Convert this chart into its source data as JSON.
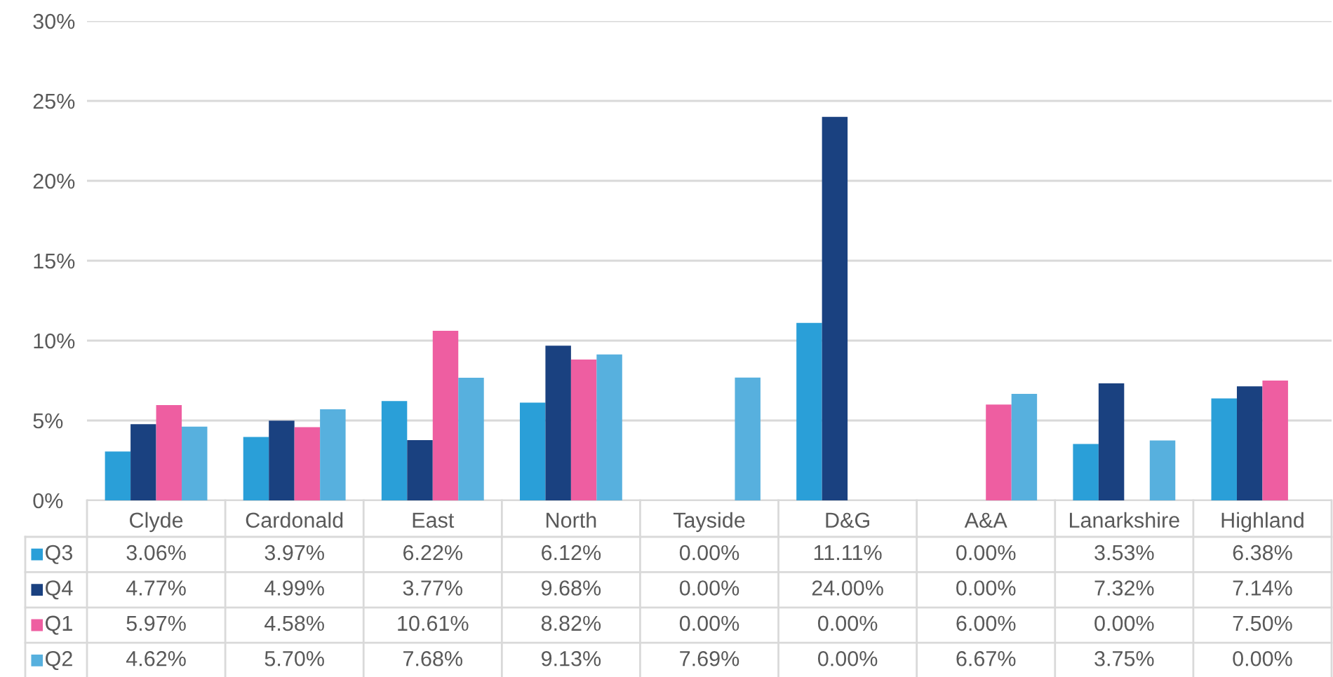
{
  "chart_data": {
    "type": "bar",
    "categories": [
      "Clyde",
      "Cardonald",
      "East",
      "North",
      "Tayside",
      "D&G",
      "A&A",
      "Lanarkshire",
      "Highland"
    ],
    "series": [
      {
        "name": "Q3",
        "color": "#2a9fd8",
        "values": [
          3.06,
          3.97,
          6.22,
          6.12,
          0.0,
          11.11,
          0.0,
          3.53,
          6.38
        ],
        "value_labels": [
          "3.06%",
          "3.97%",
          "6.22%",
          "6.12%",
          "0.00%",
          "11.11%",
          "0.00%",
          "3.53%",
          "6.38%"
        ]
      },
      {
        "name": "Q4",
        "color": "#1a4180",
        "values": [
          4.77,
          4.99,
          3.77,
          9.68,
          0.0,
          24.0,
          0.0,
          7.32,
          7.14
        ],
        "value_labels": [
          "4.77%",
          "4.99%",
          "3.77%",
          "9.68%",
          "0.00%",
          "24.00%",
          "0.00%",
          "7.32%",
          "7.14%"
        ]
      },
      {
        "name": "Q1",
        "color": "#ee5ea1",
        "values": [
          5.97,
          4.58,
          10.61,
          8.82,
          0.0,
          0.0,
          6.0,
          0.0,
          7.5
        ],
        "value_labels": [
          "5.97%",
          "4.58%",
          "10.61%",
          "8.82%",
          "0.00%",
          "0.00%",
          "6.00%",
          "0.00%",
          "7.50%"
        ]
      },
      {
        "name": "Q2",
        "color": "#57b0de",
        "values": [
          4.62,
          5.7,
          7.68,
          9.13,
          7.69,
          0.0,
          6.67,
          3.75,
          0.0
        ],
        "value_labels": [
          "4.62%",
          "5.70%",
          "7.68%",
          "9.13%",
          "7.69%",
          "0.00%",
          "6.67%",
          "3.75%",
          "0.00%"
        ]
      }
    ],
    "ylim": [
      0,
      30
    ],
    "yticks": [
      {
        "value": 0,
        "label": "0%"
      },
      {
        "value": 5,
        "label": "5%"
      },
      {
        "value": 10,
        "label": "10%"
      },
      {
        "value": 15,
        "label": "15%"
      },
      {
        "value": 20,
        "label": "20%"
      },
      {
        "value": 25,
        "label": "25%"
      },
      {
        "value": 30,
        "label": "30%"
      }
    ],
    "grid": "y",
    "legend": "bottom"
  }
}
